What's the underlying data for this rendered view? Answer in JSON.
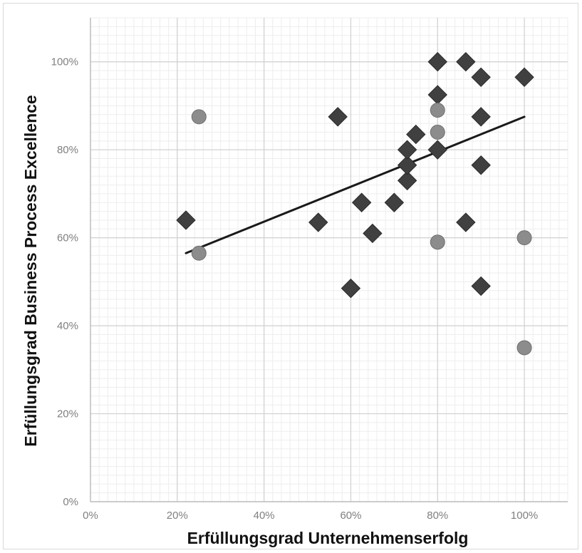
{
  "chart_data": {
    "type": "scatter",
    "title": "",
    "xlabel": "Erfüllungsgrad Unternehmenserfolg",
    "ylabel": "Erfüllungsgrad Business Process Excellence",
    "xlim": [
      0,
      1.1
    ],
    "ylim": [
      0,
      1.1
    ],
    "x_ticks": [
      0,
      0.2,
      0.4,
      0.6,
      0.8,
      1.0
    ],
    "x_tick_labels": [
      "0%",
      "20%",
      "40%",
      "60%",
      "80%",
      "100%"
    ],
    "y_ticks": [
      0,
      0.2,
      0.4,
      0.6,
      0.8,
      1.0
    ],
    "y_tick_labels": [
      "0%",
      "20%",
      "40%",
      "60%",
      "80%",
      "100%"
    ],
    "grid": "major and minor",
    "legend": "none",
    "series": [
      {
        "marker": "diamond",
        "color": "#404040",
        "points": [
          [
            0.22,
            0.64
          ],
          [
            0.525,
            0.635
          ],
          [
            0.57,
            0.875
          ],
          [
            0.6,
            0.485
          ],
          [
            0.625,
            0.68
          ],
          [
            0.65,
            0.61
          ],
          [
            0.7,
            0.68
          ],
          [
            0.73,
            0.73
          ],
          [
            0.73,
            0.765
          ],
          [
            0.73,
            0.8
          ],
          [
            0.75,
            0.835
          ],
          [
            0.8,
            1.0
          ],
          [
            0.8,
            0.925
          ],
          [
            0.8,
            0.8
          ],
          [
            0.865,
            1.0
          ],
          [
            0.865,
            0.635
          ],
          [
            0.9,
            0.965
          ],
          [
            0.9,
            0.875
          ],
          [
            0.9,
            0.765
          ],
          [
            0.9,
            0.49
          ],
          [
            1.0,
            0.965
          ]
        ]
      },
      {
        "marker": "circle",
        "color": "#8c8c8c",
        "points": [
          [
            0.25,
            0.875
          ],
          [
            0.25,
            0.565
          ],
          [
            0.8,
            0.89
          ],
          [
            0.8,
            0.84
          ],
          [
            0.8,
            0.59
          ],
          [
            1.0,
            0.6
          ],
          [
            1.0,
            0.35
          ]
        ]
      }
    ],
    "trendline": {
      "type": "linear",
      "color": "#1a1a1a",
      "points": [
        [
          0.22,
          0.565
        ],
        [
          1.0,
          0.875
        ]
      ]
    }
  }
}
